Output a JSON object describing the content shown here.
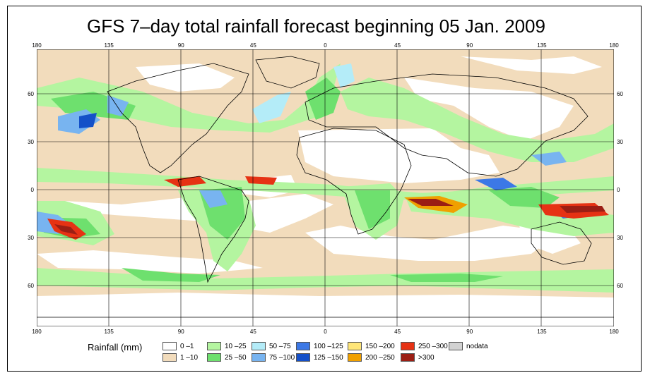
{
  "title": "GFS 7–day total rainfall forecast beginning 05 Jan. 2009",
  "axes": {
    "top_ticks": [
      "180",
      "135",
      "90",
      "45",
      "0",
      "45",
      "90",
      "135",
      "180"
    ],
    "bottom_ticks": [
      "180",
      "135",
      "90",
      "45",
      "0",
      "45",
      "90",
      "135",
      "180"
    ],
    "left_ticks": [
      "60",
      "30",
      "0",
      "30",
      "60"
    ],
    "right_ticks": [
      "60",
      "30",
      "0",
      "30",
      "60"
    ]
  },
  "legend": {
    "title": "Rainfall (mm)",
    "items": [
      {
        "label": "0 –1",
        "color": "#ffffff"
      },
      {
        "label": "1 –10",
        "color": "#f2dcbc"
      },
      {
        "label": "10 –25",
        "color": "#b4f5a0"
      },
      {
        "label": "25 –50",
        "color": "#6ee06e"
      },
      {
        "label": "50 –75",
        "color": "#b4ecf8"
      },
      {
        "label": "75 –100",
        "color": "#78b4f0"
      },
      {
        "label": "100 –125",
        "color": "#3c78e6"
      },
      {
        "label": "125 –150",
        "color": "#1450c8"
      },
      {
        "label": "150 –200",
        "color": "#ffe678"
      },
      {
        "label": "200 –250",
        "color": "#f0a000"
      },
      {
        "label": "250 –300",
        "color": "#e63214"
      },
      {
        "label": ">300",
        "color": "#9b1e14"
      },
      {
        "label": "nodata",
        "color": "#d2d2d2"
      }
    ]
  }
}
